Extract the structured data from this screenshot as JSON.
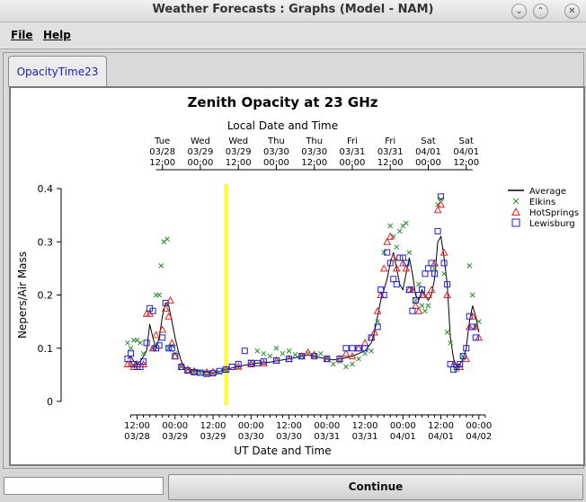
{
  "window": {
    "title": "Weather Forecasts : Graphs (Model - NAM)"
  },
  "menu": {
    "file": "File",
    "help": "Help"
  },
  "tab": {
    "label": "OpacityTime23"
  },
  "footer": {
    "continue_label": "Continue",
    "status_text": ""
  },
  "chart_data": {
    "type": "line",
    "title": "Zenith Opacity at 23 GHz",
    "top_axis_title": "Local Date and Time",
    "xlabel": "UT Date and Time",
    "ylabel": "Nepers/Air Mass",
    "ylim": [
      0,
      0.4
    ],
    "yticks": [
      "0",
      "0.1",
      "0.2",
      "0.3",
      "0.4"
    ],
    "xlim": [
      -12,
      128
    ],
    "x_unit": "hours after 03/28 00:00 UT",
    "bottom_ticks": [
      {
        "x": 12,
        "line1": "12:00",
        "line2": "03/28"
      },
      {
        "x": 24,
        "line1": "00:00",
        "line2": "03/29"
      },
      {
        "x": 36,
        "line1": "12:00",
        "line2": "03/29"
      },
      {
        "x": 48,
        "line1": "00:00",
        "line2": "03/30"
      },
      {
        "x": 60,
        "line1": "12:00",
        "line2": "03/30"
      },
      {
        "x": 72,
        "line1": "00:00",
        "line2": "03/31"
      },
      {
        "x": 84,
        "line1": "12:00",
        "line2": "03/31"
      },
      {
        "x": 96,
        "line1": "00:00",
        "line2": "04/01"
      },
      {
        "x": 108,
        "line1": "12:00",
        "line2": "04/01"
      },
      {
        "x": 120,
        "line1": "00:00",
        "line2": "04/02"
      }
    ],
    "top_ticks": [
      {
        "x": 20,
        "day": "Tue",
        "date": "03/28",
        "time": "12:00"
      },
      {
        "x": 32,
        "day": "Wed",
        "date": "03/29",
        "time": "00:00"
      },
      {
        "x": 44,
        "day": "Wed",
        "date": "03/29",
        "time": "12:00"
      },
      {
        "x": 56,
        "day": "Thu",
        "date": "03/30",
        "time": "00:00"
      },
      {
        "x": 68,
        "day": "Thu",
        "date": "03/30",
        "time": "12:00"
      },
      {
        "x": 80,
        "day": "Fri",
        "date": "03/31",
        "time": "00:00"
      },
      {
        "x": 92,
        "day": "Fri",
        "date": "03/31",
        "time": "12:00"
      },
      {
        "x": 104,
        "day": "Sat",
        "date": "04/01",
        "time": "00:00"
      },
      {
        "x": 116,
        "day": "Sat",
        "date": "04/01",
        "time": "12:00"
      }
    ],
    "now_marker_x": 40,
    "legend": [
      "Average",
      "Elkins",
      "HotSprings",
      "Lewisburg"
    ],
    "legend_position": "right",
    "colors": {
      "average": "#000000",
      "elkins": "#2e8b2e",
      "hotsprings": "#e02020",
      "lewisburg": "#1f1fd0",
      "now_marker": "#ffff33"
    },
    "average": [
      [
        9,
        0.08
      ],
      [
        10,
        0.085
      ],
      [
        11,
        0.075
      ],
      [
        12,
        0.072
      ],
      [
        13,
        0.075
      ],
      [
        14,
        0.085
      ],
      [
        15,
        0.095
      ],
      [
        16,
        0.145
      ],
      [
        17,
        0.12
      ],
      [
        18,
        0.1
      ],
      [
        19,
        0.12
      ],
      [
        20,
        0.16
      ],
      [
        21,
        0.185
      ],
      [
        22,
        0.18
      ],
      [
        23,
        0.15
      ],
      [
        24,
        0.12
      ],
      [
        25,
        0.095
      ],
      [
        26,
        0.075
      ],
      [
        27,
        0.065
      ],
      [
        28,
        0.06
      ],
      [
        30,
        0.058
      ],
      [
        32,
        0.057
      ],
      [
        34,
        0.055
      ],
      [
        36,
        0.054
      ],
      [
        38,
        0.056
      ],
      [
        40,
        0.06
      ],
      [
        42,
        0.063
      ],
      [
        44,
        0.066
      ],
      [
        46,
        0.068
      ],
      [
        48,
        0.07
      ],
      [
        50,
        0.072
      ],
      [
        52,
        0.073
      ],
      [
        54,
        0.074
      ],
      [
        56,
        0.076
      ],
      [
        58,
        0.078
      ],
      [
        60,
        0.08
      ],
      [
        62,
        0.082
      ],
      [
        64,
        0.085
      ],
      [
        66,
        0.087
      ],
      [
        68,
        0.085
      ],
      [
        70,
        0.082
      ],
      [
        72,
        0.08
      ],
      [
        74,
        0.078
      ],
      [
        76,
        0.08
      ],
      [
        78,
        0.082
      ],
      [
        80,
        0.085
      ],
      [
        82,
        0.09
      ],
      [
        84,
        0.095
      ],
      [
        86,
        0.11
      ],
      [
        87,
        0.13
      ],
      [
        88,
        0.16
      ],
      [
        89,
        0.19
      ],
      [
        90,
        0.21
      ],
      [
        91,
        0.23
      ],
      [
        92,
        0.26
      ],
      [
        93,
        0.28
      ],
      [
        94,
        0.25
      ],
      [
        95,
        0.22
      ],
      [
        96,
        0.21
      ],
      [
        97,
        0.24
      ],
      [
        98,
        0.27
      ],
      [
        99,
        0.24
      ],
      [
        100,
        0.2
      ],
      [
        101,
        0.19
      ],
      [
        102,
        0.21
      ],
      [
        103,
        0.2
      ],
      [
        104,
        0.19
      ],
      [
        105,
        0.2
      ],
      [
        106,
        0.23
      ],
      [
        107,
        0.3
      ],
      [
        108,
        0.31
      ],
      [
        109,
        0.27
      ],
      [
        110,
        0.22
      ],
      [
        111,
        0.12
      ],
      [
        112,
        0.08
      ],
      [
        113,
        0.065
      ],
      [
        114,
        0.07
      ],
      [
        115,
        0.08
      ],
      [
        116,
        0.1
      ],
      [
        117,
        0.15
      ],
      [
        118,
        0.18
      ],
      [
        119,
        0.16
      ],
      [
        120,
        0.13
      ]
    ],
    "elkins": [
      [
        9,
        0.11
      ],
      [
        10,
        0.1
      ],
      [
        11,
        0.115
      ],
      [
        12,
        0.115
      ],
      [
        13,
        0.11
      ],
      [
        14,
        0.09
      ],
      [
        17,
        0.1
      ],
      [
        18,
        0.2
      ],
      [
        19,
        0.2
      ],
      [
        19.6,
        0.255
      ],
      [
        20.5,
        0.3
      ],
      [
        21.5,
        0.305
      ],
      [
        22,
        0.1
      ],
      [
        23,
        0.105
      ],
      [
        24,
        0.09
      ],
      [
        26,
        0.065
      ],
      [
        28,
        0.06
      ],
      [
        30,
        0.055
      ],
      [
        32,
        0.053
      ],
      [
        34,
        0.05
      ],
      [
        36,
        0.052
      ],
      [
        38,
        0.055
      ],
      [
        40,
        0.058
      ],
      [
        44,
        0.063
      ],
      [
        48,
        0.075
      ],
      [
        50,
        0.095
      ],
      [
        52,
        0.09
      ],
      [
        54,
        0.085
      ],
      [
        56,
        0.1
      ],
      [
        58,
        0.09
      ],
      [
        60,
        0.095
      ],
      [
        62,
        0.088
      ],
      [
        64,
        0.085
      ],
      [
        66,
        0.09
      ],
      [
        68,
        0.085
      ],
      [
        70,
        0.09
      ],
      [
        72,
        0.08
      ],
      [
        74,
        0.07
      ],
      [
        76,
        0.075
      ],
      [
        78,
        0.065
      ],
      [
        80,
        0.07
      ],
      [
        82,
        0.08
      ],
      [
        84,
        0.09
      ],
      [
        86,
        0.095
      ],
      [
        88,
        0.15
      ],
      [
        90,
        0.28
      ],
      [
        92,
        0.33
      ],
      [
        93,
        0.31
      ],
      [
        94,
        0.29
      ],
      [
        95,
        0.32
      ],
      [
        96,
        0.33
      ],
      [
        97,
        0.335
      ],
      [
        98,
        0.28
      ],
      [
        99,
        0.21
      ],
      [
        100,
        0.19
      ],
      [
        101,
        0.22
      ],
      [
        102,
        0.18
      ],
      [
        103,
        0.17
      ],
      [
        104,
        0.18
      ],
      [
        106,
        0.25
      ],
      [
        107,
        0.37
      ],
      [
        108,
        0.38
      ],
      [
        109,
        0.24
      ],
      [
        110,
        0.13
      ],
      [
        111,
        0.11
      ],
      [
        113,
        0.06
      ],
      [
        115,
        0.085
      ],
      [
        117,
        0.255
      ],
      [
        118,
        0.2
      ],
      [
        119,
        0.14
      ],
      [
        120,
        0.15
      ]
    ],
    "hotsprings": [
      [
        9,
        0.07
      ],
      [
        10,
        0.07
      ],
      [
        11,
        0.065
      ],
      [
        12,
        0.07
      ],
      [
        14,
        0.07
      ],
      [
        15,
        0.165
      ],
      [
        16,
        0.165
      ],
      [
        17,
        0.1
      ],
      [
        18,
        0.125
      ],
      [
        20,
        0.135
      ],
      [
        21,
        0.175
      ],
      [
        22,
        0.16
      ],
      [
        22.5,
        0.19
      ],
      [
        23,
        0.11
      ],
      [
        24,
        0.085
      ],
      [
        26,
        0.065
      ],
      [
        28,
        0.06
      ],
      [
        30,
        0.057
      ],
      [
        34,
        0.055
      ],
      [
        36,
        0.056
      ],
      [
        40,
        0.06
      ],
      [
        44,
        0.066
      ],
      [
        48,
        0.07
      ],
      [
        52,
        0.072
      ],
      [
        56,
        0.077
      ],
      [
        60,
        0.08
      ],
      [
        64,
        0.085
      ],
      [
        66,
        0.092
      ],
      [
        68,
        0.088
      ],
      [
        72,
        0.08
      ],
      [
        76,
        0.08
      ],
      [
        78,
        0.09
      ],
      [
        80,
        0.085
      ],
      [
        82,
        0.1
      ],
      [
        84,
        0.11
      ],
      [
        86,
        0.12
      ],
      [
        87,
        0.13
      ],
      [
        88,
        0.17
      ],
      [
        89,
        0.2
      ],
      [
        90,
        0.25
      ],
      [
        91,
        0.3
      ],
      [
        92,
        0.31
      ],
      [
        93,
        0.27
      ],
      [
        94,
        0.25
      ],
      [
        96,
        0.26
      ],
      [
        97,
        0.25
      ],
      [
        98,
        0.21
      ],
      [
        99,
        0.21
      ],
      [
        100,
        0.18
      ],
      [
        101,
        0.17
      ],
      [
        102,
        0.2
      ],
      [
        104,
        0.2
      ],
      [
        105,
        0.21
      ],
      [
        106,
        0.26
      ],
      [
        107,
        0.36
      ],
      [
        108,
        0.37
      ],
      [
        109,
        0.28
      ],
      [
        110,
        0.2
      ],
      [
        112,
        0.07
      ],
      [
        114,
        0.065
      ],
      [
        116,
        0.08
      ],
      [
        117,
        0.14
      ],
      [
        118,
        0.16
      ],
      [
        119,
        0.14
      ],
      [
        120,
        0.12
      ]
    ],
    "lewisburg": [
      [
        9,
        0.08
      ],
      [
        10,
        0.09
      ],
      [
        11,
        0.07
      ],
      [
        12,
        0.065
      ],
      [
        13,
        0.065
      ],
      [
        14,
        0.075
      ],
      [
        15,
        0.11
      ],
      [
        16,
        0.175
      ],
      [
        17,
        0.17
      ],
      [
        18,
        0.1
      ],
      [
        19,
        0.105
      ],
      [
        20,
        0.12
      ],
      [
        21,
        0.185
      ],
      [
        22,
        0.1
      ],
      [
        23,
        0.1
      ],
      [
        24,
        0.085
      ],
      [
        26,
        0.065
      ],
      [
        28,
        0.058
      ],
      [
        30,
        0.055
      ],
      [
        32,
        0.054
      ],
      [
        34,
        0.052
      ],
      [
        36,
        0.053
      ],
      [
        38,
        0.057
      ],
      [
        40,
        0.06
      ],
      [
        42,
        0.065
      ],
      [
        44,
        0.07
      ],
      [
        46,
        0.095
      ],
      [
        48,
        0.072
      ],
      [
        50,
        0.072
      ],
      [
        52,
        0.075
      ],
      [
        56,
        0.077
      ],
      [
        60,
        0.08
      ],
      [
        64,
        0.085
      ],
      [
        68,
        0.085
      ],
      [
        72,
        0.08
      ],
      [
        76,
        0.08
      ],
      [
        78,
        0.1
      ],
      [
        80,
        0.1
      ],
      [
        82,
        0.1
      ],
      [
        84,
        0.1
      ],
      [
        86,
        0.12
      ],
      [
        88,
        0.14
      ],
      [
        89,
        0.21
      ],
      [
        90,
        0.2
      ],
      [
        91,
        0.28
      ],
      [
        92,
        0.26
      ],
      [
        93,
        0.23
      ],
      [
        94,
        0.22
      ],
      [
        95,
        0.27
      ],
      [
        96,
        0.27
      ],
      [
        97,
        0.26
      ],
      [
        98,
        0.21
      ],
      [
        99,
        0.17
      ],
      [
        100,
        0.19
      ],
      [
        101,
        0.2
      ],
      [
        102,
        0.21
      ],
      [
        103,
        0.24
      ],
      [
        104,
        0.25
      ],
      [
        105,
        0.26
      ],
      [
        106,
        0.24
      ],
      [
        107,
        0.32
      ],
      [
        108,
        0.385
      ],
      [
        109,
        0.26
      ],
      [
        110,
        0.22
      ],
      [
        111,
        0.07
      ],
      [
        112,
        0.06
      ],
      [
        113,
        0.065
      ],
      [
        114,
        0.07
      ],
      [
        115,
        0.085
      ],
      [
        116,
        0.1
      ],
      [
        117,
        0.16
      ],
      [
        118,
        0.14
      ],
      [
        119,
        0.12
      ]
    ]
  }
}
